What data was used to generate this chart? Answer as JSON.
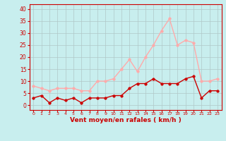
{
  "hours": [
    0,
    1,
    2,
    3,
    4,
    5,
    6,
    7,
    8,
    9,
    10,
    11,
    12,
    13,
    14,
    15,
    16,
    17,
    18,
    19,
    20,
    21,
    22,
    23
  ],
  "wind_mean": [
    3,
    4,
    1,
    3,
    2,
    3,
    1,
    3,
    3,
    3,
    4,
    4,
    7,
    9,
    9,
    11,
    9,
    9,
    9,
    11,
    12,
    3,
    6,
    6
  ],
  "wind_gusts": [
    8,
    7,
    6,
    7,
    7,
    7,
    6,
    6,
    10,
    10,
    11,
    15,
    19,
    14,
    20,
    25,
    31,
    36,
    25,
    27,
    26,
    10,
    10,
    11
  ],
  "bg_color": "#c8eeee",
  "grid_color": "#b0c8c8",
  "mean_color": "#cc0000",
  "gust_color": "#ffaaaa",
  "xlabel": "Vent moyen/en rafales ( km/h )",
  "xlabel_color": "#cc0000",
  "tick_color": "#cc0000",
  "spine_color": "#cc0000",
  "yticks": [
    0,
    5,
    10,
    15,
    20,
    25,
    30,
    35,
    40
  ],
  "ylim": [
    -2,
    42
  ],
  "xlim": [
    -0.5,
    23.5
  ],
  "marker_size": 2.5,
  "line_width": 1.0
}
